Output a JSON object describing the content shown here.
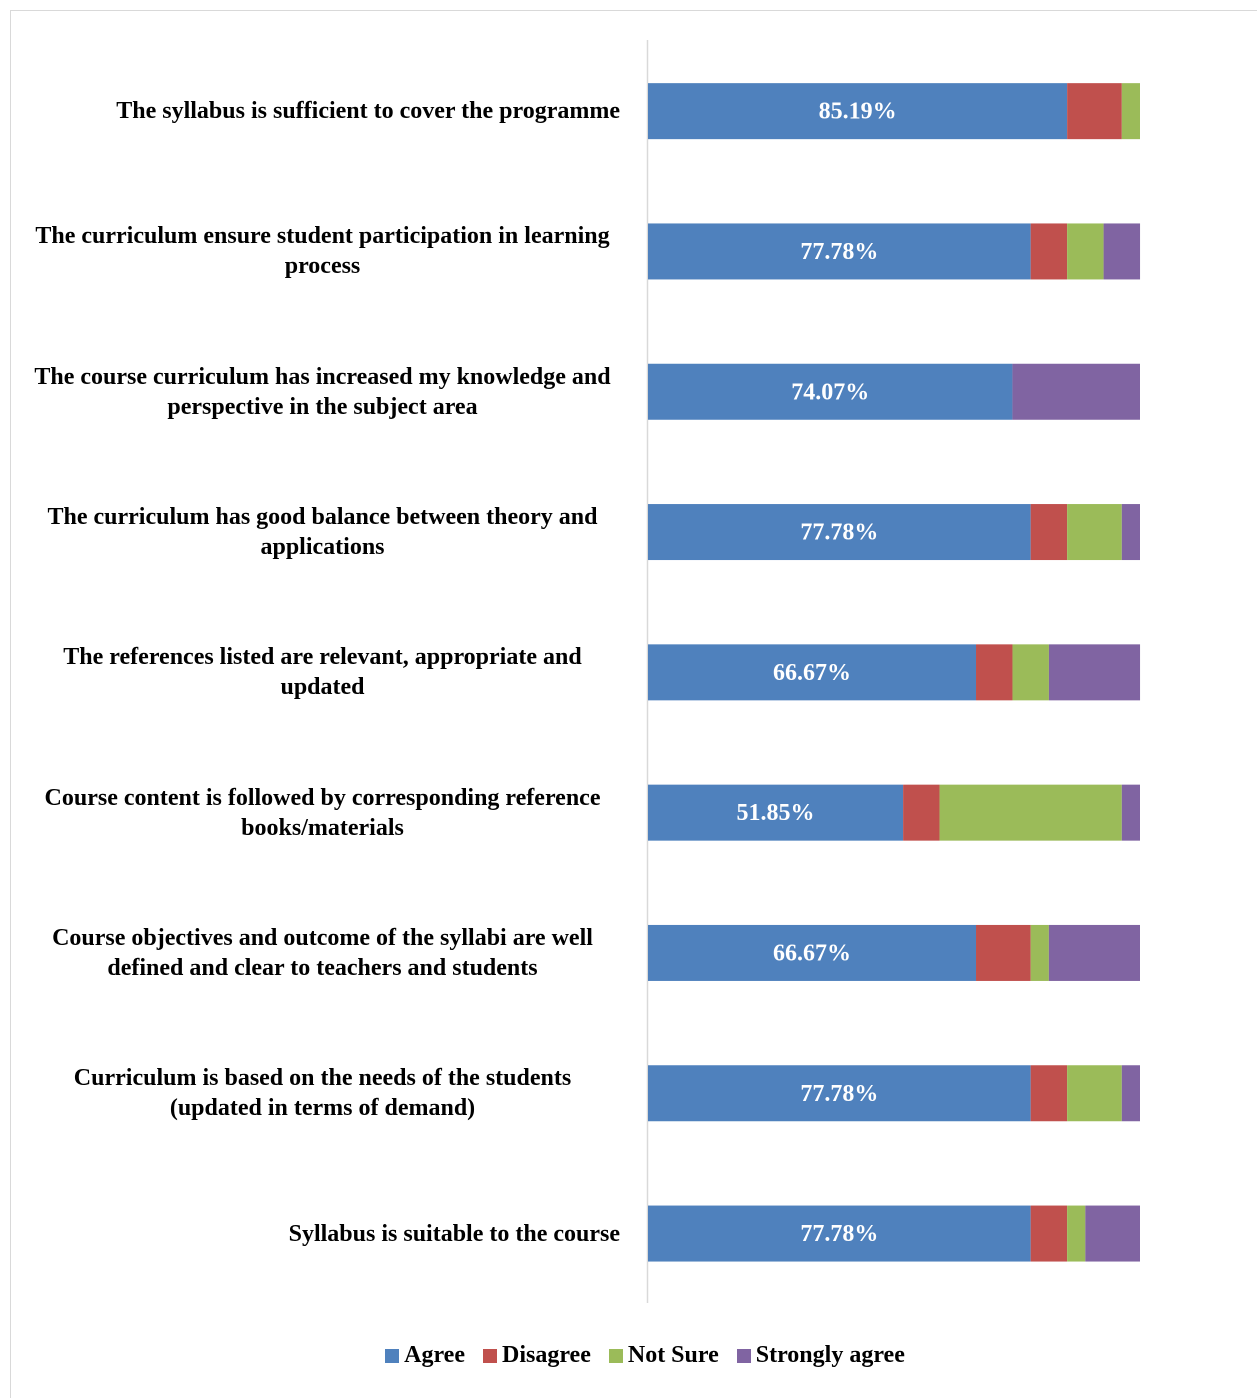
{
  "chart_data": {
    "type": "stacked_bar_horizontal",
    "categories": [
      "The syllabus is sufficient to cover the programme",
      "The curriculum ensure student participation in learning process",
      "The course curriculum has increased my knowledge and perspective in the subject area",
      "The curriculum has good balance between theory and applications",
      "The references listed are relevant, appropriate and updated",
      "Course content is followed by corresponding reference books/materials",
      "Course objectives and outcome of the syllabi are well defined and clear to teachers and students",
      "Curriculum is based on the needs of the students (updated in terms of demand)",
      "Syllabus is suitable to the course"
    ],
    "series": [
      {
        "name": "Agree",
        "color": "#4f81bd",
        "values": [
          85.19,
          77.78,
          74.07,
          77.78,
          66.67,
          51.85,
          66.67,
          77.78,
          77.78
        ],
        "value_labels": [
          "85.19%",
          "77.78%",
          "74.07%",
          "77.78%",
          "66.67%",
          "51.85%",
          "66.67%",
          "77.78%",
          "77.78%"
        ]
      },
      {
        "name": "Disagree",
        "color": "#c0504d",
        "values": [
          11.11,
          7.41,
          0,
          7.41,
          7.41,
          7.41,
          11.11,
          7.41,
          7.41
        ]
      },
      {
        "name": "Not Sure",
        "color": "#9bbb59",
        "values": [
          3.7,
          7.41,
          0,
          11.11,
          7.41,
          37.04,
          3.7,
          11.11,
          3.7
        ]
      },
      {
        "name": "Strongly agree",
        "color": "#8064a2",
        "values": [
          0,
          7.41,
          25.93,
          3.7,
          18.52,
          3.7,
          18.52,
          3.7,
          11.11
        ]
      }
    ],
    "xlim": [
      0,
      100
    ],
    "legend": "bottom"
  }
}
